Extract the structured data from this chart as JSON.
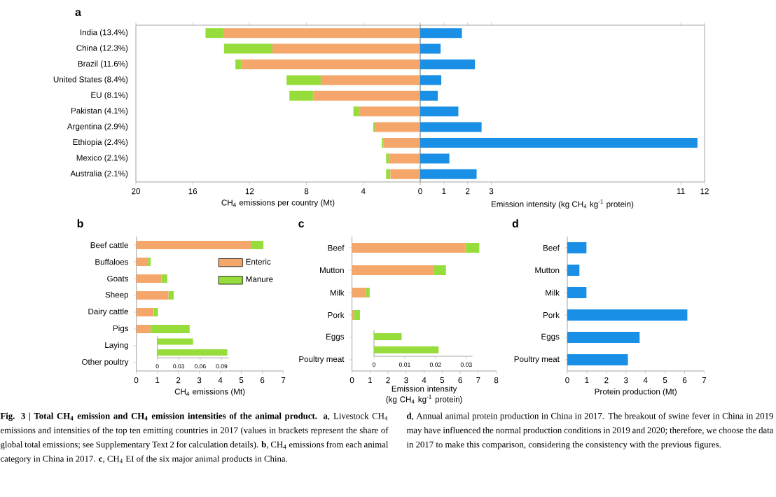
{
  "chart_data": [
    {
      "type": "bar",
      "orientation": "horizontal",
      "stacked": true,
      "title": "a",
      "categories": [
        "India (13.4%)",
        "China (12.3%)",
        "Brazil (11.6%)",
        "United States (8.4%)",
        "EU (8.1%)",
        "Pakistan (4.1%)",
        "Argentina (2.9%)",
        "Ethiopia (2.4%)",
        "Mexico (2.1%)",
        "Australia (2.1%)"
      ],
      "series": [
        {
          "color": "#f5a66a",
          "values": [
            13.8,
            10.4,
            12.6,
            7.0,
            7.5,
            4.3,
            3.2,
            2.6,
            2.2,
            2.1
          ]
        },
        {
          "color": "#96dc3a",
          "values": [
            1.3,
            3.4,
            0.4,
            2.4,
            1.7,
            0.4,
            0.1,
            0.1,
            0.2,
            0.3
          ]
        }
      ],
      "xlabel": "CH$_{4}$ emissions per country (Mt)",
      "xlim": [
        20,
        0
      ],
      "xticks": [
        20,
        16,
        12,
        8,
        4,
        0
      ],
      "annotations": [
        "**Fig. 3 | Total CH$_{4}$ emission and CH$_{4}$ emission intensities of the animal product.** **a**, Livestock CH$_{4}$ emissions and intensities of the top ten emitting countries in 2017 (values in brackets represent the share of global total emissions; see Supplementary Text 2 for calculation details). **b**, CH$_{4}$ emissions from each animal category in China in 2017. **c**, CH$_{4}$ EI of the six major animal products in China.",
        "**d**, Annual animal protein production in China in 2017. The breakout of swine fever in China in 2019 may have influenced the normal production conditions in 2019 and 2020; therefore, we choose the data in 2017 to make this comparison, considering the consistency with the previous figures."
      ]
    },
    {
      "type": "bar",
      "orientation": "horizontal",
      "categories": [
        null,
        null,
        null,
        null,
        null,
        null,
        null,
        null,
        null,
        null
      ],
      "color": "#1a8fe6",
      "values": [
        1.76,
        0.86,
        2.31,
        0.89,
        0.74,
        1.61,
        2.59,
        11.7,
        1.23,
        2.38
      ],
      "xlabel": "Emission intensity (kg CH$_{4}$ kg$^{-1}$ protein)",
      "xlim": [
        0,
        12
      ],
      "xticks": [
        {
          "value": 0,
          "label": null
        },
        1,
        2,
        3,
        11,
        12
      ]
    },
    {
      "type": "bar",
      "orientation": "horizontal",
      "stacked": true,
      "title": "b",
      "legend": "top right",
      "categories": [
        "Beef cattle",
        "Buffaloes",
        "Goats",
        "Sheep",
        "Dairy cattle",
        "Pigs",
        "Laying",
        "Other poultry"
      ],
      "series": [
        {
          "name": "Enteric",
          "color": "#f5a66a",
          "values": [
            5.45,
            0.55,
            1.2,
            1.53,
            0.83,
            0.67,
            null,
            null
          ]
        },
        {
          "name": "Manure",
          "color": "#96dc3a",
          "values": [
            0.6,
            0.13,
            0.27,
            0.25,
            0.2,
            1.87,
            null,
            null
          ]
        }
      ],
      "xlabel": "CH$_{4}$ emissions (Mt)",
      "xlim": [
        0,
        7
      ],
      "xticks": [
        0,
        1,
        2,
        3,
        4,
        5,
        6,
        7
      ]
    },
    {
      "type": "bar",
      "orientation": "horizontal",
      "categories": [
        null,
        null
      ],
      "color": "#96dc3a",
      "values": [
        0.05,
        0.098
      ],
      "xlim": [
        0,
        0.1
      ],
      "xticks": [
        0,
        0.03,
        0.06,
        0.09
      ]
    },
    {
      "type": "bar",
      "orientation": "horizontal",
      "stacked": true,
      "title": "c",
      "categories": [
        "Beef",
        "Mutton",
        "Milk",
        "Pork",
        "Eggs",
        "Poultry meat"
      ],
      "series": [
        {
          "color": "#f5a66a",
          "values": [
            6.28,
            4.53,
            0.78,
            0.1,
            null,
            null
          ]
        },
        {
          "color": "#96dc3a",
          "values": [
            0.78,
            0.68,
            0.2,
            0.34,
            null,
            null
          ]
        }
      ],
      "xlabel": "Emission intensity (kg CH$_{4}$ kg$^{-1}$ protein)",
      "xlim": [
        0,
        8
      ],
      "xticks": [
        0,
        1,
        2,
        3,
        4,
        5,
        6,
        7,
        8
      ]
    },
    {
      "type": "bar",
      "orientation": "horizontal",
      "categories": [
        null,
        null
      ],
      "color": "#96dc3a",
      "values": [
        0.009,
        0.021
      ],
      "xlim": [
        0,
        0.032
      ],
      "xticks": [
        0,
        0.01,
        0.02,
        0.03
      ]
    },
    {
      "type": "bar",
      "orientation": "horizontal",
      "title": "d",
      "categories": [
        "Beef",
        "Mutton",
        "Milk",
        "Pork",
        "Eggs",
        "Poultry meat"
      ],
      "color": "#1a8fe6",
      "values": [
        0.98,
        0.62,
        0.98,
        6.14,
        3.7,
        3.1
      ],
      "xlabel": "Protein production (Mt)",
      "xlim": [
        0,
        7
      ],
      "xticks": [
        0,
        1,
        2,
        3,
        4,
        5,
        6,
        7
      ]
    }
  ]
}
